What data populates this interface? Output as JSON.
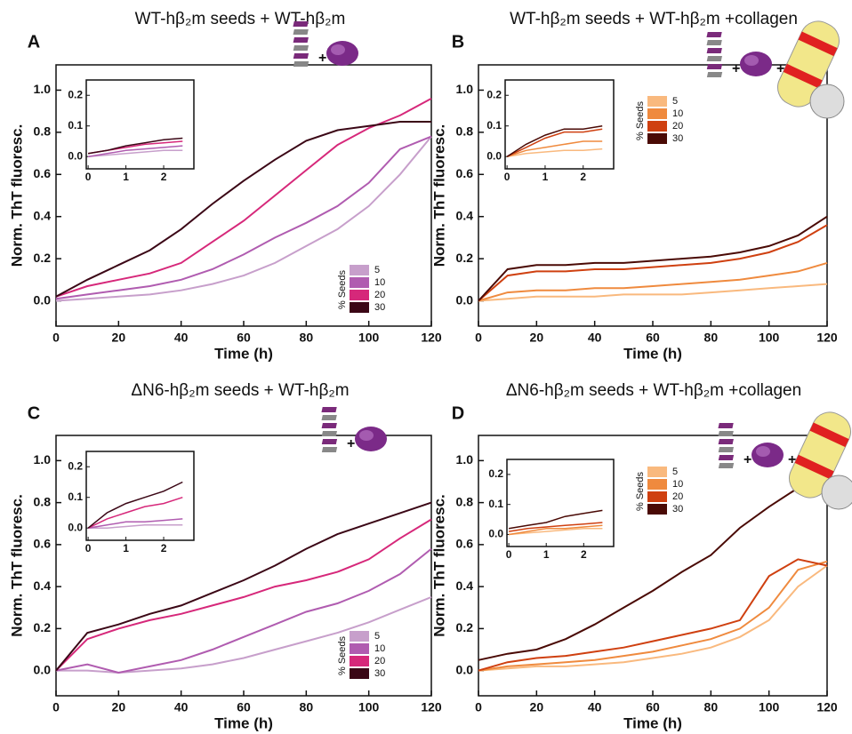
{
  "chart_data": [
    {
      "type": "line",
      "panel_label": "A",
      "title": "WT-hβ₂m seeds + WT-hβ₂m",
      "xlabel": "Time (h)",
      "ylabel": "Norm. ThT fluoresc.",
      "legend_title": "% Seeds",
      "x": [
        0,
        10,
        20,
        30,
        40,
        50,
        60,
        70,
        80,
        90,
        100,
        110,
        120
      ],
      "series": [
        {
          "name": "5",
          "color": "#c79fcb",
          "values": [
            0.0,
            0.01,
            0.02,
            0.03,
            0.05,
            0.08,
            0.12,
            0.18,
            0.26,
            0.34,
            0.45,
            0.6,
            0.78
          ]
        },
        {
          "name": "10",
          "color": "#b05cb0",
          "values": [
            0.01,
            0.03,
            0.05,
            0.07,
            0.1,
            0.15,
            0.22,
            0.3,
            0.37,
            0.45,
            0.56,
            0.72,
            0.78
          ]
        },
        {
          "name": "20",
          "color": "#d6287a",
          "values": [
            0.02,
            0.07,
            0.1,
            0.13,
            0.18,
            0.28,
            0.38,
            0.5,
            0.62,
            0.74,
            0.82,
            0.88,
            0.96
          ]
        },
        {
          "name": "30",
          "color": "#3b0716",
          "values": [
            0.02,
            0.1,
            0.17,
            0.24,
            0.34,
            0.46,
            0.57,
            0.67,
            0.76,
            0.81,
            0.83,
            0.85,
            0.85
          ]
        }
      ],
      "xlim": [
        0,
        120
      ],
      "ylim": [
        -0.12,
        1.12
      ],
      "xticks": [
        0,
        20,
        40,
        60,
        80,
        100,
        120
      ],
      "yticks": [
        {
          "value": 0,
          "label": "0.0"
        },
        0.2,
        0.4,
        0.6,
        0.8,
        {
          "value": 1,
          "label": "1.0"
        }
      ],
      "inset": {
        "x": [
          0,
          0.5,
          1,
          1.5,
          2,
          2.5
        ],
        "series": [
          {
            "values": [
              0,
              0.005,
              0.01,
              0.015,
              0.02,
              0.02
            ]
          },
          {
            "values": [
              0,
              0.01,
              0.02,
              0.025,
              0.03,
              0.035
            ]
          },
          {
            "values": [
              0.01,
              0.02,
              0.03,
              0.04,
              0.045,
              0.05
            ]
          },
          {
            "values": [
              0.01,
              0.02,
              0.035,
              0.045,
              0.055,
              0.06
            ]
          }
        ],
        "xlim": [
          -0.05,
          2.8
        ],
        "ylim": [
          -0.04,
          0.25
        ],
        "xticks": [
          0,
          1,
          2
        ],
        "yticks": [
          {
            "value": 0,
            "label": "0.0"
          },
          0.1,
          0.2
        ]
      }
    },
    {
      "type": "line",
      "panel_label": "B",
      "title": "WT-hβ₂m seeds + WT-hβ₂m +collagen",
      "xlabel": "Time (h)",
      "ylabel": "Norm. ThT fluoresc.",
      "legend_title": "% Seeds",
      "x": [
        0,
        10,
        20,
        30,
        40,
        50,
        60,
        70,
        80,
        90,
        100,
        110,
        120
      ],
      "series": [
        {
          "name": "5",
          "color": "#f9b97e",
          "values": [
            0,
            0.01,
            0.02,
            0.02,
            0.02,
            0.03,
            0.03,
            0.03,
            0.04,
            0.05,
            0.06,
            0.07,
            0.08
          ]
        },
        {
          "name": "10",
          "color": "#ef8a3e",
          "values": [
            0,
            0.04,
            0.05,
            0.05,
            0.06,
            0.06,
            0.07,
            0.08,
            0.09,
            0.1,
            0.12,
            0.14,
            0.18
          ]
        },
        {
          "name": "20",
          "color": "#cf4010",
          "values": [
            0,
            0.12,
            0.14,
            0.14,
            0.15,
            0.15,
            0.16,
            0.17,
            0.18,
            0.2,
            0.23,
            0.28,
            0.36
          ]
        },
        {
          "name": "30",
          "color": "#4a0a05",
          "values": [
            0,
            0.15,
            0.17,
            0.17,
            0.18,
            0.18,
            0.19,
            0.2,
            0.21,
            0.23,
            0.26,
            0.31,
            0.4
          ]
        }
      ],
      "xlim": [
        0,
        120
      ],
      "ylim": [
        -0.12,
        1.12
      ],
      "xticks": [
        0,
        20,
        40,
        60,
        80,
        100,
        120
      ],
      "yticks": [
        {
          "value": 0,
          "label": "0.0"
        },
        0.2,
        0.4,
        0.6,
        0.8,
        {
          "value": 1,
          "label": "1.0"
        }
      ],
      "inset": {
        "x": [
          0,
          0.5,
          1,
          1.5,
          2,
          2.5
        ],
        "series": [
          {
            "values": [
              0,
              0.01,
              0.015,
              0.02,
              0.02,
              0.025
            ]
          },
          {
            "values": [
              0,
              0.02,
              0.03,
              0.04,
              0.05,
              0.05
            ]
          },
          {
            "values": [
              0,
              0.03,
              0.06,
              0.08,
              0.08,
              0.09
            ]
          },
          {
            "values": [
              0,
              0.04,
              0.07,
              0.09,
              0.09,
              0.1
            ]
          }
        ],
        "xlim": [
          -0.05,
          2.8
        ],
        "ylim": [
          -0.04,
          0.25
        ],
        "xticks": [
          0,
          1,
          2
        ],
        "yticks": [
          {
            "value": 0,
            "label": "0.0"
          },
          0.1,
          0.2
        ]
      }
    },
    {
      "type": "line",
      "panel_label": "C",
      "title": "ΔN6-hβ₂m seeds + WT-hβ₂m",
      "xlabel": "Time (h)",
      "ylabel": "Norm. ThT fluoresc.",
      "legend_title": "% Seeds",
      "x": [
        0,
        10,
        20,
        30,
        40,
        50,
        60,
        70,
        80,
        90,
        100,
        110,
        120
      ],
      "series": [
        {
          "name": "5",
          "color": "#c79fcb",
          "values": [
            0,
            0.0,
            -0.01,
            0.0,
            0.01,
            0.03,
            0.06,
            0.1,
            0.14,
            0.18,
            0.23,
            0.29,
            0.35
          ]
        },
        {
          "name": "10",
          "color": "#b05cb0",
          "values": [
            0,
            0.03,
            -0.01,
            0.02,
            0.05,
            0.1,
            0.16,
            0.22,
            0.28,
            0.32,
            0.38,
            0.46,
            0.58
          ]
        },
        {
          "name": "20",
          "color": "#d6287a",
          "values": [
            0,
            0.15,
            0.2,
            0.24,
            0.27,
            0.31,
            0.35,
            0.4,
            0.43,
            0.47,
            0.53,
            0.63,
            0.72
          ]
        },
        {
          "name": "30",
          "color": "#3b0716",
          "values": [
            0,
            0.18,
            0.22,
            0.27,
            0.31,
            0.37,
            0.43,
            0.5,
            0.58,
            0.65,
            0.7,
            0.75,
            0.8
          ]
        }
      ],
      "xlim": [
        0,
        120
      ],
      "ylim": [
        -0.12,
        1.12
      ],
      "xticks": [
        0,
        20,
        40,
        60,
        80,
        100,
        120
      ],
      "yticks": [
        {
          "value": 0,
          "label": "0.0"
        },
        0.2,
        0.4,
        0.6,
        0.8,
        {
          "value": 1,
          "label": "1.0"
        }
      ],
      "inset": {
        "x": [
          0,
          0.5,
          1,
          1.5,
          2,
          2.5
        ],
        "series": [
          {
            "values": [
              0,
              0,
              0.005,
              0.01,
              0.01,
              0.01
            ]
          },
          {
            "values": [
              0,
              0.01,
              0.02,
              0.02,
              0.025,
              0.03
            ]
          },
          {
            "values": [
              0,
              0.03,
              0.05,
              0.07,
              0.08,
              0.1
            ]
          },
          {
            "values": [
              0,
              0.05,
              0.08,
              0.1,
              0.12,
              0.15
            ]
          }
        ],
        "xlim": [
          -0.05,
          2.8
        ],
        "ylim": [
          -0.04,
          0.25
        ],
        "xticks": [
          0,
          1,
          2
        ],
        "yticks": [
          {
            "value": 0,
            "label": "0.0"
          },
          0.1,
          0.2
        ]
      }
    },
    {
      "type": "line",
      "panel_label": "D",
      "title": "ΔN6-hβ₂m seeds + WT-hβ₂m +collagen",
      "xlabel": "Time (h)",
      "ylabel": "Norm. ThT fluoresc.",
      "legend_title": "% Seeds",
      "x": [
        0,
        10,
        20,
        30,
        40,
        50,
        60,
        70,
        80,
        90,
        100,
        110,
        120
      ],
      "series": [
        {
          "name": "5",
          "color": "#f9b97e",
          "values": [
            0,
            0.01,
            0.02,
            0.02,
            0.03,
            0.04,
            0.06,
            0.08,
            0.11,
            0.16,
            0.24,
            0.4,
            0.5
          ]
        },
        {
          "name": "10",
          "color": "#ef8a3e",
          "values": [
            0,
            0.02,
            0.03,
            0.04,
            0.05,
            0.07,
            0.09,
            0.12,
            0.15,
            0.2,
            0.3,
            0.48,
            0.52
          ]
        },
        {
          "name": "20",
          "color": "#cf4010",
          "values": [
            0,
            0.04,
            0.06,
            0.07,
            0.09,
            0.11,
            0.14,
            0.17,
            0.2,
            0.24,
            0.45,
            0.53,
            0.5
          ]
        },
        {
          "name": "30",
          "color": "#4a0a05",
          "values": [
            0.05,
            0.08,
            0.1,
            0.15,
            0.22,
            0.3,
            0.38,
            0.47,
            0.55,
            0.68,
            0.78,
            0.87,
            0.88
          ]
        }
      ],
      "xlim": [
        0,
        120
      ],
      "ylim": [
        -0.12,
        1.12
      ],
      "xticks": [
        0,
        20,
        40,
        60,
        80,
        100,
        120
      ],
      "yticks": [
        {
          "value": 0,
          "label": "0.0"
        },
        0.2,
        0.4,
        0.6,
        0.8,
        {
          "value": 1,
          "label": "1.0"
        }
      ],
      "inset": {
        "x": [
          0,
          0.5,
          1,
          1.5,
          2,
          2.5
        ],
        "series": [
          {
            "values": [
              0,
              0.005,
              0.01,
              0.015,
              0.02,
              0.02
            ]
          },
          {
            "values": [
              0,
              0.01,
              0.02,
              0.02,
              0.025,
              0.03
            ]
          },
          {
            "values": [
              0.01,
              0.02,
              0.025,
              0.03,
              0.035,
              0.04
            ]
          },
          {
            "values": [
              0.02,
              0.03,
              0.04,
              0.06,
              0.07,
              0.08
            ]
          }
        ],
        "xlim": [
          -0.05,
          2.8
        ],
        "ylim": [
          -0.04,
          0.25
        ],
        "xticks": [
          0,
          1,
          2
        ],
        "yticks": [
          {
            "value": 0,
            "label": "0.0"
          },
          0.1,
          0.2
        ]
      }
    }
  ]
}
